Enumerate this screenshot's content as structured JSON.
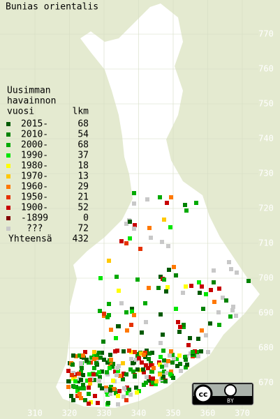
{
  "title": "Bunias orientalis",
  "legend": {
    "header": [
      "Uusimman",
      "havainnon",
      "vuosi"
    ],
    "count_header": "lkm",
    "rows": [
      {
        "label": "2015-",
        "count": 68,
        "color": "#005a00"
      },
      {
        "label": "2010-",
        "count": 54,
        "color": "#008200"
      },
      {
        "label": "2000-",
        "count": 68,
        "color": "#00aa00"
      },
      {
        "label": "1990-",
        "count": 37,
        "color": "#00e600"
      },
      {
        "label": "1980-",
        "count": 18,
        "color": "#ffff00"
      },
      {
        "label": "1970-",
        "count": 13,
        "color": "#ffc800"
      },
      {
        "label": "1960-",
        "count": 29,
        "color": "#ff7800"
      },
      {
        "label": "1950-",
        "count": 21,
        "color": "#e63200"
      },
      {
        "label": "1900-",
        "count": 52,
        "color": "#c80000"
      },
      {
        "label": "-1899",
        "count": 0,
        "color": "#820000"
      },
      {
        "label": "???",
        "count": 72,
        "color": "#c8c8c8"
      }
    ],
    "total_label": "Yhteensä",
    "total": 432
  },
  "xticks": [
    310,
    320,
    330,
    340,
    350,
    360,
    370
  ],
  "yticks": [
    670,
    680,
    690,
    700,
    710,
    720,
    730,
    740,
    750,
    760,
    770
  ],
  "license": {
    "badge": "cc",
    "attribution": "BY"
  }
}
